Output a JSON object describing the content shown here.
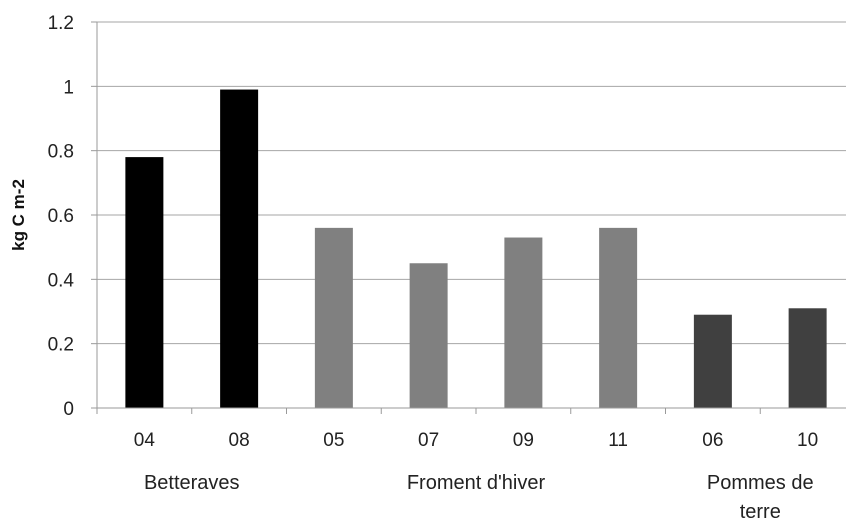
{
  "chart_data": {
    "type": "bar",
    "ylabel": "kg C m-2",
    "ylim": [
      0,
      1.2
    ],
    "yticks": [
      "0",
      "0.2",
      "0.4",
      "0.6",
      "0.8",
      "1",
      "1.2"
    ],
    "grid": true,
    "categories": [
      "04",
      "08",
      "05",
      "07",
      "09",
      "11",
      "06",
      "10"
    ],
    "values": [
      0.78,
      0.99,
      0.56,
      0.45,
      0.53,
      0.56,
      0.29,
      0.31
    ],
    "bar_colors": [
      "#000000",
      "#000000",
      "#808080",
      "#808080",
      "#808080",
      "#808080",
      "#404040",
      "#404040"
    ],
    "groups": [
      {
        "name": "Betteraves",
        "lines": [
          "Betteraves"
        ],
        "start": 0,
        "end": 1
      },
      {
        "name": "Froment d'hiver",
        "lines": [
          "Froment d'hiver"
        ],
        "start": 2,
        "end": 5
      },
      {
        "name": "Pommes de terre",
        "lines": [
          "Pommes de",
          "terre"
        ],
        "start": 6,
        "end": 7
      }
    ]
  }
}
